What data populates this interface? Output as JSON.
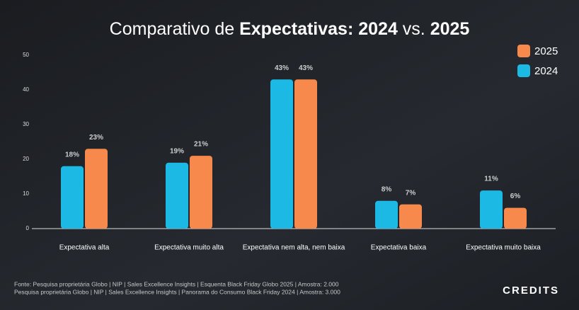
{
  "chart_data": {
    "type": "bar",
    "title_parts": [
      "Comparativo de ",
      "Expectativas: 2024",
      " vs. ",
      "2025"
    ],
    "categories": [
      "Expectativa alta",
      "Expectativa muito alta",
      "Expectativa nem alta, nem baixa",
      "Expectativa baixa",
      "Expectativa muito baixa"
    ],
    "series": [
      {
        "name": "2024",
        "color": "#1bb9e3",
        "values": [
          18,
          19,
          43,
          8,
          11
        ],
        "value_labels": [
          "18%",
          "19%",
          "43%",
          "8%",
          "11%"
        ]
      },
      {
        "name": "2025",
        "color": "#f6894b",
        "values": [
          23,
          21,
          43,
          7,
          6
        ],
        "value_labels": [
          "23%",
          "21%",
          "43%",
          "7%",
          "6%"
        ]
      }
    ],
    "ylim": [
      0,
      50
    ],
    "yticks": [
      0,
      10,
      20,
      30,
      40,
      50
    ],
    "grid": false,
    "legend": "top-right"
  },
  "footer": {
    "sources": [
      "Fonte: Pesquisa proprietária Globo | NIP | Sales Excellence Insights | Esquenta Black Friday Globo 2025 | Amostra: 2.000",
      "Pesquisa proprietária Globo | NIP | Sales Excellence Insights | Panorama do Consumo Black Friday 2024 | Amostra: 3.000"
    ],
    "logo": "CREDITS"
  }
}
